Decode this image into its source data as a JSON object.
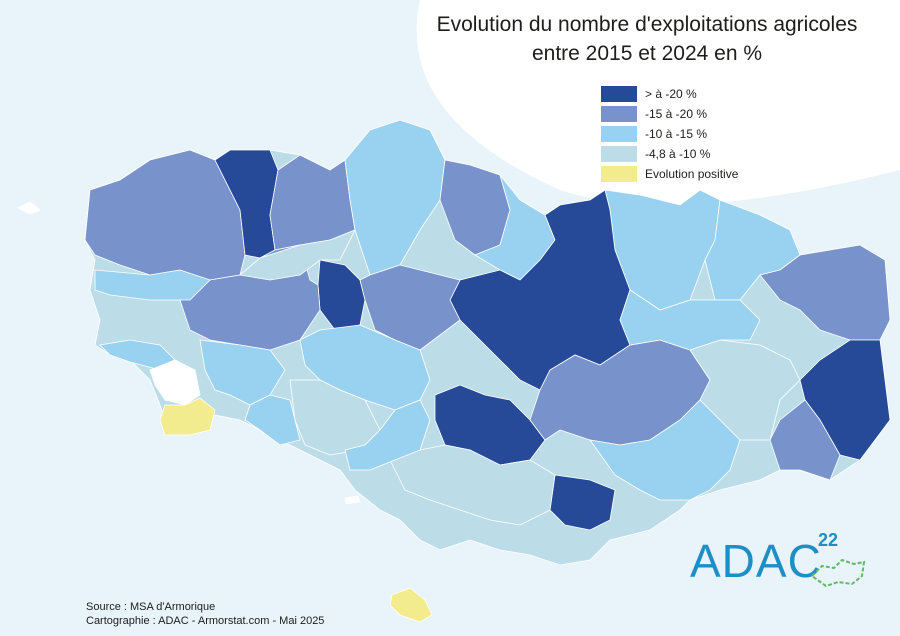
{
  "title_line1": "Evolution du nombre d'exploitations agricoles",
  "title_line2": "entre 2015 et 2024 en %",
  "legend": [
    {
      "label": "> à -20 %",
      "color": "#264a97"
    },
    {
      "label": "-15 à -20 %",
      "color": "#7893cc"
    },
    {
      "label": "-10 à -15 %",
      "color": "#99d2f0"
    },
    {
      "label": "-4,8 à -10 %",
      "color": "#bcdde8"
    },
    {
      "label": "Evolution positive",
      "color": "#f3ec8f"
    }
  ],
  "colors": {
    "sea": "#e8f3fa",
    "sea_white": "#ffffff",
    "dark": "#264a97",
    "mid": "#7893cc",
    "light": "#99d2f0",
    "pale": "#bcdde8",
    "yellow": "#f3ec8f",
    "white_zone": "#ffffff",
    "logo": "#1e8fc6",
    "logo_green": "#63b86a"
  },
  "source_line1": "Source : MSA d'Armorique",
  "source_line2": "Cartographie : ADAC - Armorstat.com - Mai 2025",
  "logo_text": "ADAC",
  "logo_number": "22"
}
